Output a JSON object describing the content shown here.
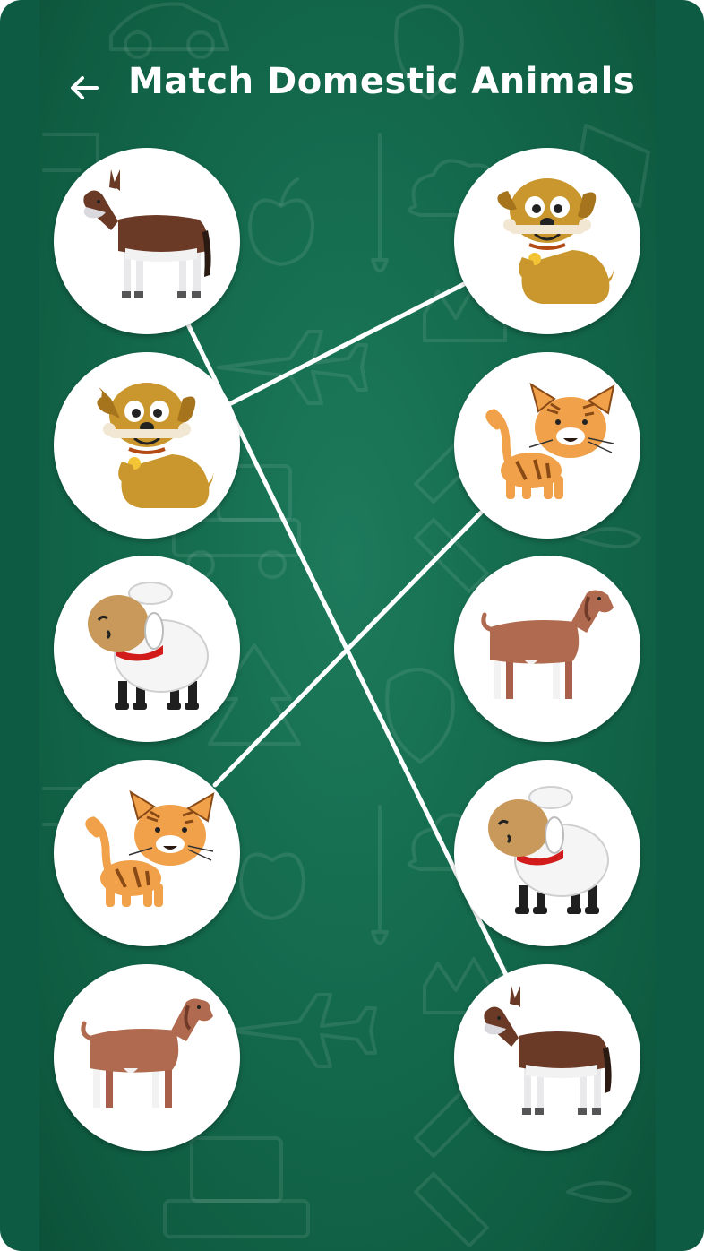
{
  "header": {
    "title": "Match Domestic Animals",
    "back_icon": "arrow-left-icon"
  },
  "colors": {
    "board": "#146a4d",
    "frame": "#0d5b43",
    "card": "#ffffff",
    "connector": "#ffffff"
  },
  "left_column": [
    {
      "animal": "donkey",
      "icon": "donkey-icon"
    },
    {
      "animal": "dog",
      "icon": "dog-icon"
    },
    {
      "animal": "sheep",
      "icon": "sheep-icon"
    },
    {
      "animal": "cat",
      "icon": "cat-icon"
    },
    {
      "animal": "goat",
      "icon": "goat-icon"
    }
  ],
  "right_column": [
    {
      "animal": "dog",
      "icon": "dog-icon"
    },
    {
      "animal": "cat",
      "icon": "cat-icon"
    },
    {
      "animal": "goat",
      "icon": "goat-icon"
    },
    {
      "animal": "sheep",
      "icon": "sheep-icon"
    },
    {
      "animal": "donkey",
      "icon": "donkey-icon"
    }
  ],
  "matches": [
    {
      "left": "donkey",
      "right": "donkey"
    },
    {
      "left": "dog",
      "right": "dog"
    },
    {
      "left": "cat",
      "right": "cat"
    }
  ]
}
